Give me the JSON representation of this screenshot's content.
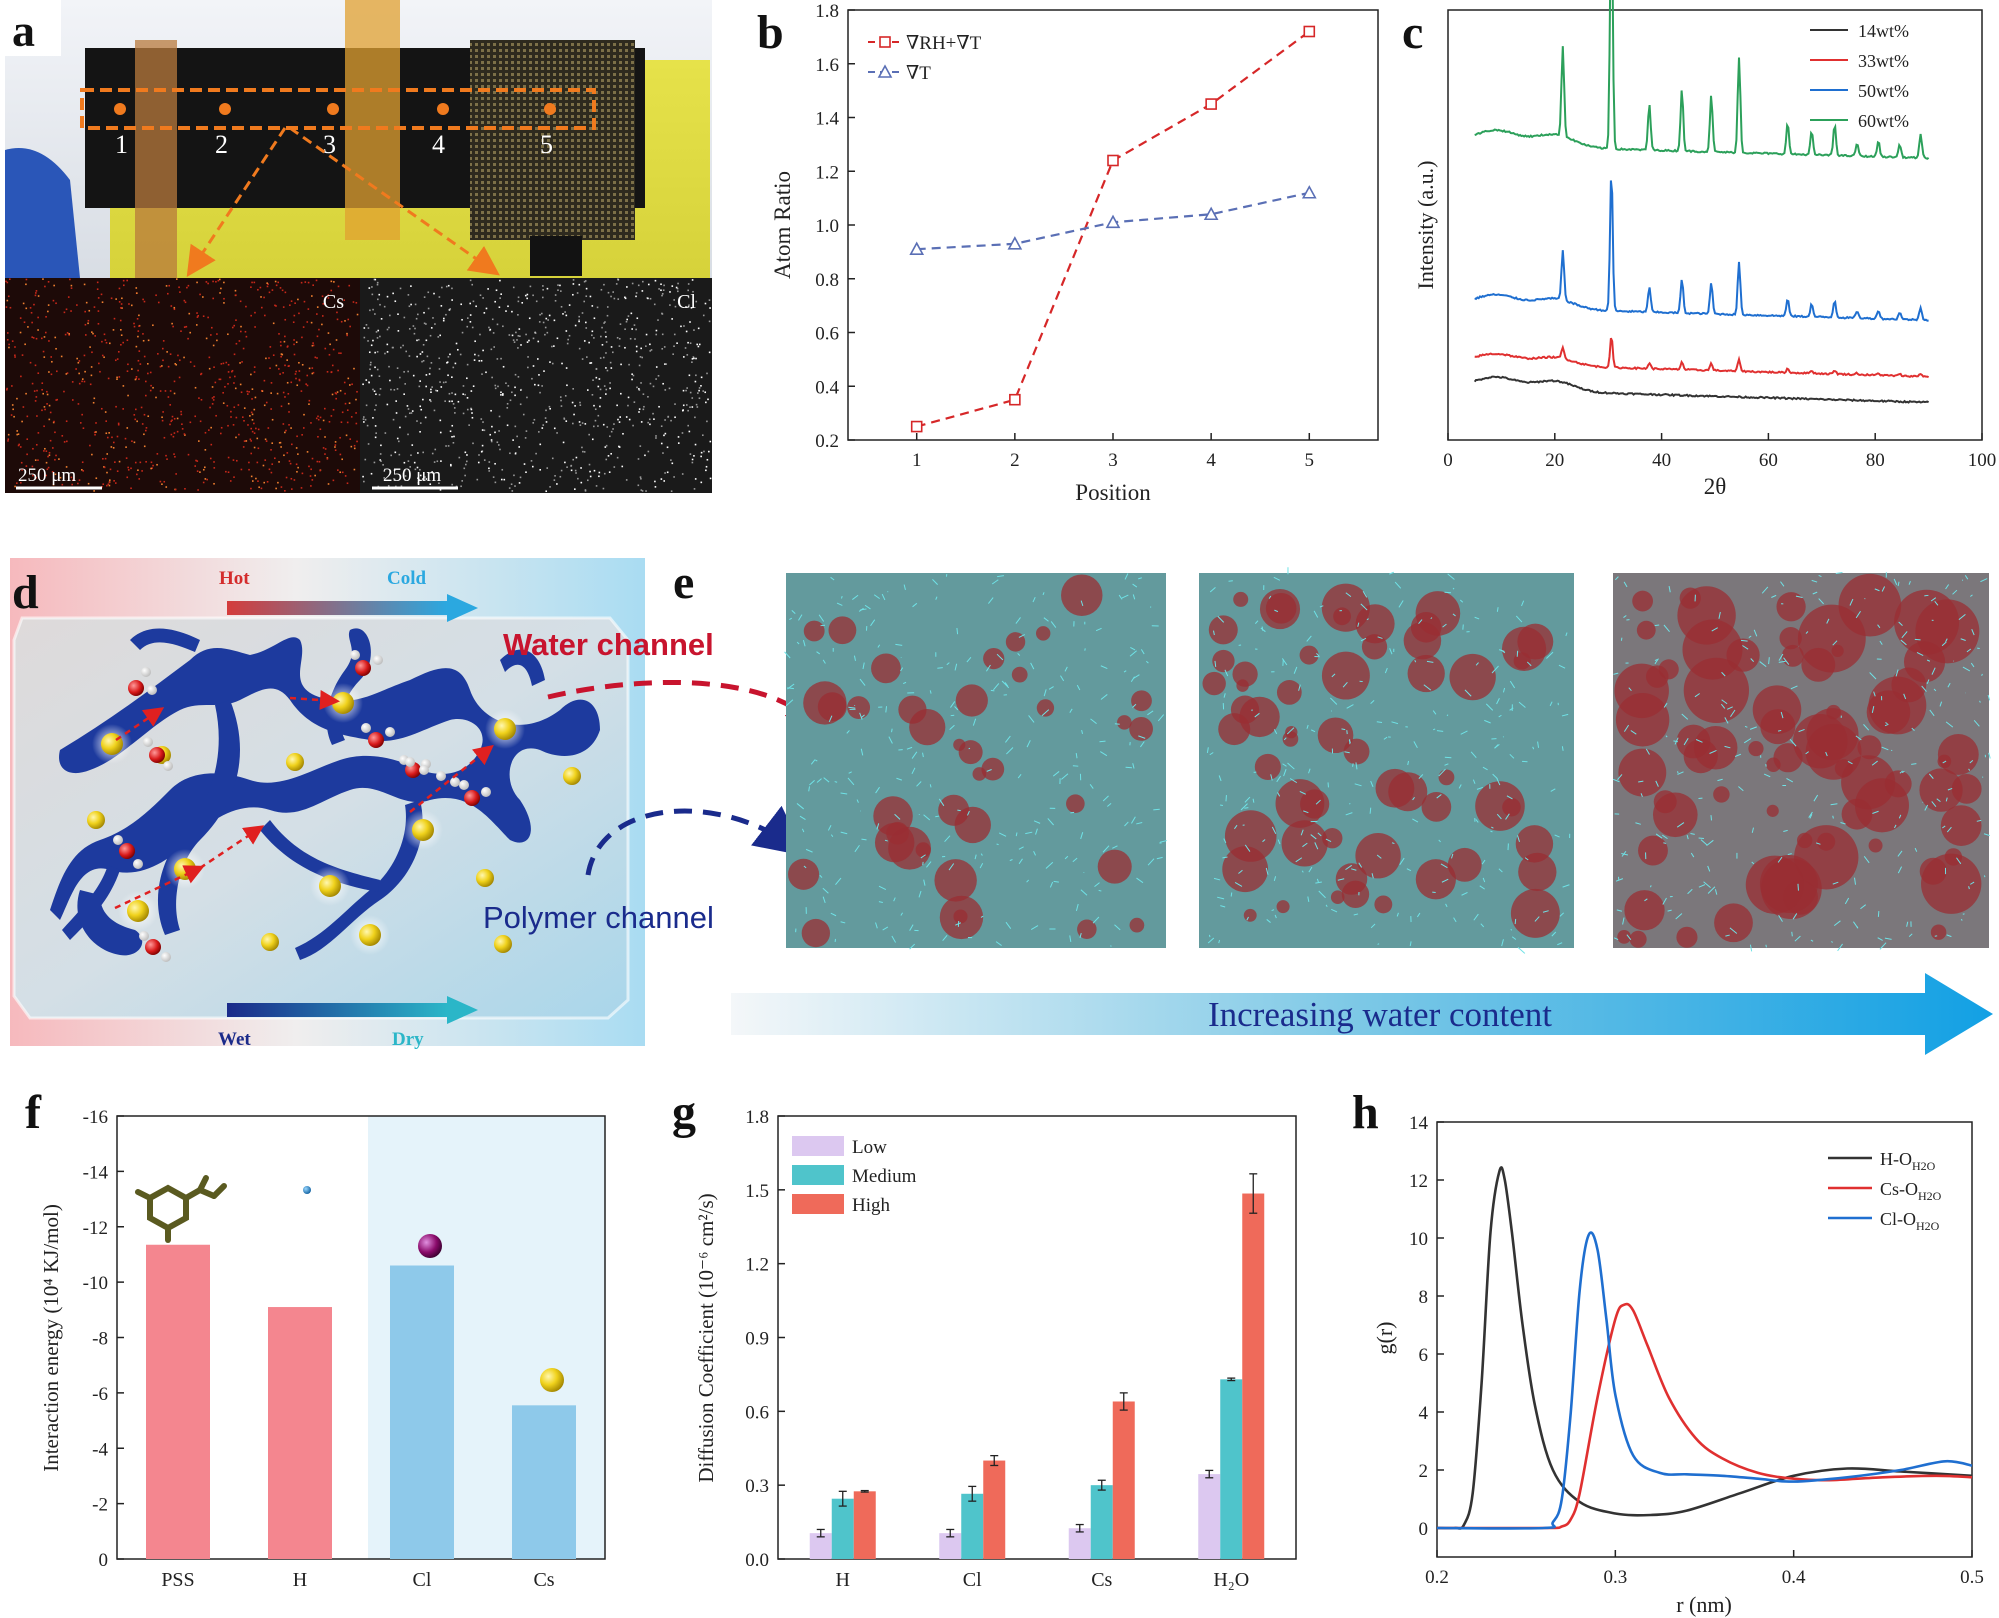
{
  "panel_labels": [
    "a",
    "b",
    "c",
    "d",
    "e",
    "f",
    "g",
    "h"
  ],
  "panel_a": {
    "position_markers": [
      "1",
      "2",
      "3",
      "4",
      "5"
    ],
    "eds_maps": [
      {
        "element": "Cs",
        "scale_bar": "250 μm",
        "color": "#d8481e"
      },
      {
        "element": "Cl",
        "scale_bar": "250 μm",
        "color": "#e8e8e8"
      }
    ]
  },
  "panel_d": {
    "hot_label": "Hot",
    "cold_label": "Cold",
    "wet_label": "Wet",
    "dry_label": "Dry",
    "water_channel_label": "Water channel",
    "polymer_channel_label": "Polymer channel"
  },
  "panel_e": {
    "arrow_label": "Increasing water content",
    "snapshots": [
      "low water content",
      "medium water content",
      "high water content"
    ]
  },
  "chart_data": [
    {
      "panel": "b",
      "type": "line",
      "xlabel": "Position",
      "ylabel": "Atom Ratio",
      "xlim": [
        0.3,
        5.7
      ],
      "ylim": [
        0.2,
        1.8
      ],
      "xticks": [
        "1",
        "2",
        "3",
        "4",
        "5"
      ],
      "yticks": [
        "0.2",
        "0.4",
        "0.6",
        "0.8",
        "1.0",
        "1.2",
        "1.4",
        "1.6",
        "1.8"
      ],
      "x": [
        1,
        2,
        3,
        4,
        5
      ],
      "legend_position": "top-left",
      "series": [
        {
          "name": "∇RH+∇T",
          "color": "#d62728",
          "marker": "square",
          "values": [
            0.25,
            0.35,
            1.24,
            1.45,
            1.72
          ]
        },
        {
          "name": "∇T",
          "color": "#5a6fb5",
          "marker": "triangle",
          "values": [
            0.91,
            0.93,
            1.01,
            1.04,
            1.12
          ]
        }
      ]
    },
    {
      "panel": "c",
      "type": "line",
      "xlabel": "2θ",
      "ylabel": "Intensity (a.u.)",
      "xlim": [
        0,
        100
      ],
      "xticks": [
        "0",
        "20",
        "40",
        "60",
        "80",
        "100"
      ],
      "legend_position": "top-right",
      "y_ticks_shown": false,
      "peak_positions_2theta": [
        21.5,
        30.6,
        37.7,
        43.8,
        49.3,
        54.5,
        63.6,
        68.1,
        72.4,
        76.6,
        80.6,
        84.6,
        88.5
      ],
      "series": [
        {
          "name": "14wt%",
          "color": "#333333",
          "baseline": 0.1,
          "broad_hump": 0.05,
          "peak_scale": 0.0
        },
        {
          "name": "33wt%",
          "color": "#e03030",
          "baseline": 0.2,
          "broad_hump": 0.04,
          "peak_scale": 0.12
        },
        {
          "name": "50wt%",
          "color": "#1f6fd0",
          "baseline": 0.42,
          "broad_hump": 0.05,
          "peak_scale": 0.55
        },
        {
          "name": "60wt%",
          "color": "#2ca05a",
          "baseline": 1.05,
          "broad_hump": 0.06,
          "peak_scale": 1.0
        }
      ]
    },
    {
      "panel": "f",
      "type": "bar",
      "ylabel": "Interaction energy (10⁴ KJ/mol)",
      "categories": [
        "PSS",
        "H",
        "Cl",
        "Cs"
      ],
      "values": [
        -11.35,
        -9.1,
        -10.6,
        -5.55
      ],
      "ylim": [
        0,
        -16
      ],
      "yticks": [
        "0",
        "-2",
        "-4",
        "-6",
        "-8",
        "-10",
        "-12",
        "-14",
        "-16"
      ],
      "colors": [
        "#f4868f",
        "#f4868f",
        "#8ec9ea",
        "#8ec9ea"
      ],
      "highlight_region": "Cl–Cs shaded light blue"
    },
    {
      "panel": "g",
      "type": "bar",
      "ylabel": "Diffusion Coefficient (10⁻⁶ cm²/s)",
      "categories": [
        "H",
        "Cl",
        "Cs",
        "H₂O"
      ],
      "ylim": [
        0,
        1.8
      ],
      "yticks": [
        "0.0",
        "0.3",
        "0.6",
        "0.9",
        "1.2",
        "1.5",
        "1.8"
      ],
      "legend_position": "top-left",
      "series": [
        {
          "name": "Low",
          "color": "#dcc8f0",
          "values": [
            0.105,
            0.105,
            0.125,
            0.345
          ],
          "errors": [
            0.015,
            0.015,
            0.015,
            0.015
          ]
        },
        {
          "name": "Medium",
          "color": "#4fc4cb",
          "values": [
            0.245,
            0.265,
            0.3,
            0.73
          ],
          "errors": [
            0.03,
            0.03,
            0.02,
            0.005
          ]
        },
        {
          "name": "High",
          "color": "#ef6a5a",
          "values": [
            0.275,
            0.4,
            0.64,
            1.485
          ],
          "errors": [
            0.003,
            0.02,
            0.035,
            0.08
          ]
        }
      ]
    },
    {
      "panel": "h",
      "type": "line",
      "xlabel": "r (nm)",
      "ylabel": "g(r)",
      "xlim": [
        0.2,
        0.5
      ],
      "ylim": [
        -1,
        14
      ],
      "xticks": [
        "0.2",
        "0.3",
        "0.4",
        "0.5"
      ],
      "yticks": [
        "0",
        "2",
        "4",
        "6",
        "8",
        "10",
        "12",
        "14"
      ],
      "legend_position": "top-right",
      "series": [
        {
          "name": "H-O",
          "subscript": "H2O",
          "color": "#333333",
          "x": [
            0.2,
            0.21,
            0.215,
            0.22,
            0.225,
            0.23,
            0.235,
            0.238,
            0.242,
            0.248,
            0.255,
            0.265,
            0.28,
            0.3,
            0.32,
            0.34,
            0.37,
            0.4,
            0.43,
            0.46,
            0.5
          ],
          "y": [
            0,
            0,
            0.1,
            1.2,
            5.0,
            10.2,
            12.3,
            12.0,
            10.2,
            7.0,
            4.2,
            2.0,
            0.9,
            0.5,
            0.45,
            0.6,
            1.2,
            1.8,
            2.05,
            1.95,
            1.8
          ]
        },
        {
          "name": "Cs-O",
          "subscript": "H2O",
          "color": "#e03030",
          "x": [
            0.2,
            0.26,
            0.27,
            0.275,
            0.28,
            0.29,
            0.3,
            0.305,
            0.31,
            0.318,
            0.33,
            0.345,
            0.36,
            0.38,
            0.4,
            0.42,
            0.45,
            0.48,
            0.5
          ],
          "y": [
            0,
            0,
            0.05,
            0.3,
            1.2,
            4.5,
            7.2,
            7.7,
            7.5,
            6.3,
            4.5,
            3.1,
            2.4,
            1.9,
            1.7,
            1.65,
            1.75,
            1.8,
            1.75
          ]
        },
        {
          "name": "Cl-O",
          "subscript": "H2O",
          "color": "#1f6fd0",
          "x": [
            0.2,
            0.26,
            0.265,
            0.27,
            0.275,
            0.28,
            0.285,
            0.29,
            0.295,
            0.3,
            0.31,
            0.325,
            0.34,
            0.36,
            0.38,
            0.4,
            0.43,
            0.46,
            0.485,
            0.5
          ],
          "y": [
            0,
            0,
            0.2,
            1.0,
            4.0,
            8.2,
            10.1,
            9.6,
            7.2,
            4.6,
            2.5,
            1.9,
            1.85,
            1.8,
            1.7,
            1.6,
            1.75,
            2.0,
            2.3,
            2.15
          ]
        }
      ]
    }
  ]
}
